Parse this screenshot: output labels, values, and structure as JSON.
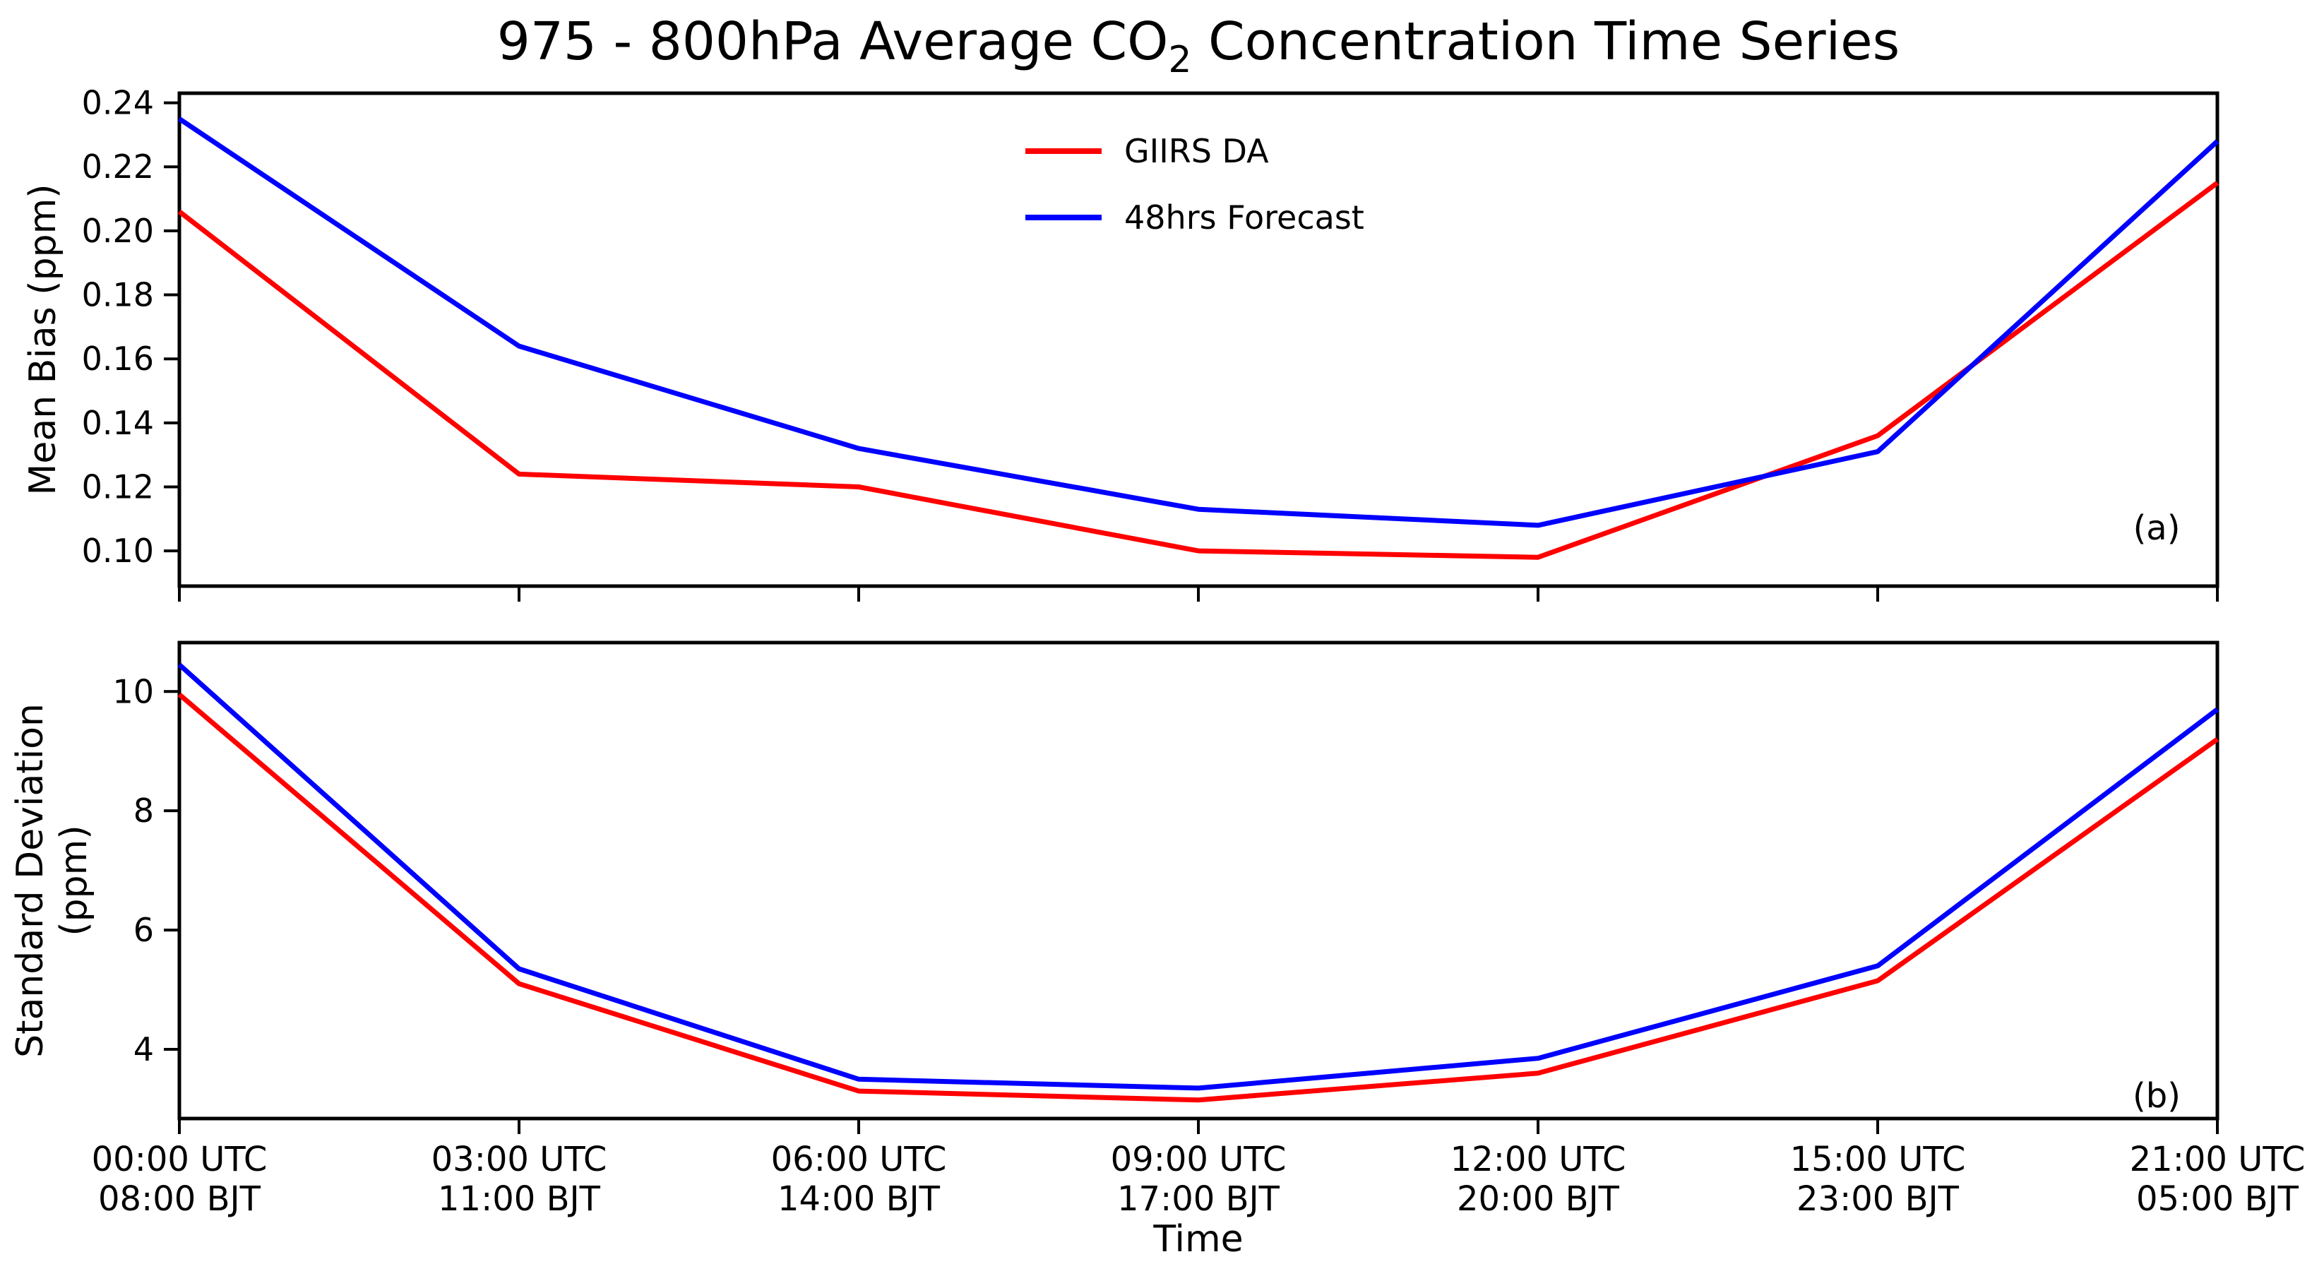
{
  "figure": {
    "title": {
      "prefix": "975 - 800hPa Average CO",
      "subscript": "2",
      "suffix": " Concentration Time Series"
    },
    "colors": {
      "giirs_da": "#ff0000",
      "forecast_48hrs": "#0000ff",
      "axis": "#000000"
    }
  },
  "legend": {
    "entries": [
      {
        "label": "GIIRS DA",
        "color": "#ff0000"
      },
      {
        "label": "48hrs Forecast",
        "color": "#0000ff"
      }
    ],
    "position": "upper center"
  },
  "x_axis": {
    "label": "Time",
    "tick_labels_utc": [
      "00:00 UTC",
      "03:00 UTC",
      "06:00 UTC",
      "09:00 UTC",
      "12:00 UTC",
      "15:00 UTC",
      "21:00 UTC"
    ],
    "tick_labels_bjt": [
      "08:00 BJT",
      "11:00 BJT",
      "14:00 BJT",
      "17:00 BJT",
      "20:00 BJT",
      "23:00 BJT",
      "05:00 BJT"
    ]
  },
  "chart_data": [
    {
      "type": "line",
      "panel": "a",
      "panel_label": "(a)",
      "title": "975 - 800hPa Average CO2 Concentration Time Series",
      "ylabel_lines": [
        "Mean Bias (ppm)"
      ],
      "xlabel": "Time",
      "categories": [
        "00:00 UTC",
        "03:00 UTC",
        "06:00 UTC",
        "09:00 UTC",
        "12:00 UTC",
        "15:00 UTC",
        "21:00 UTC"
      ],
      "categories_bjt": [
        "08:00 BJT",
        "11:00 BJT",
        "14:00 BJT",
        "17:00 BJT",
        "20:00 BJT",
        "23:00 BJT",
        "05:00 BJT"
      ],
      "ylim": [
        0.089,
        0.243
      ],
      "ytick_values": [
        0.1,
        0.12,
        0.14,
        0.16,
        0.18,
        0.2,
        0.22,
        0.24
      ],
      "ytick_labels": [
        "0.10",
        "0.12",
        "0.14",
        "0.16",
        "0.18",
        "0.20",
        "0.22",
        "0.24"
      ],
      "grid": false,
      "legend_position": "upper center",
      "series": [
        {
          "name": "GIIRS DA",
          "color": "#ff0000",
          "values": [
            0.206,
            0.124,
            0.12,
            0.1,
            0.098,
            0.136,
            0.215
          ]
        },
        {
          "name": "48hrs Forecast",
          "color": "#0000ff",
          "values": [
            0.235,
            0.164,
            0.132,
            0.113,
            0.108,
            0.131,
            0.228
          ]
        }
      ]
    },
    {
      "type": "line",
      "panel": "b",
      "panel_label": "(b)",
      "ylabel_lines": [
        "Standard Deviation",
        "(ppm)"
      ],
      "xlabel": "Time",
      "categories": [
        "00:00 UTC",
        "03:00 UTC",
        "06:00 UTC",
        "09:00 UTC",
        "12:00 UTC",
        "15:00 UTC",
        "21:00 UTC"
      ],
      "categories_bjt": [
        "08:00 BJT",
        "11:00 BJT",
        "14:00 BJT",
        "17:00 BJT",
        "20:00 BJT",
        "23:00 BJT",
        "05:00 BJT"
      ],
      "ylim": [
        2.84,
        10.82
      ],
      "ytick_values": [
        4,
        6,
        8,
        10
      ],
      "ytick_labels": [
        "4",
        "6",
        "8",
        "10"
      ],
      "grid": false,
      "series": [
        {
          "name": "GIIRS DA",
          "color": "#ff0000",
          "values": [
            9.95,
            5.1,
            3.3,
            3.15,
            3.6,
            5.15,
            9.2
          ]
        },
        {
          "name": "48hrs Forecast",
          "color": "#0000ff",
          "values": [
            10.45,
            5.35,
            3.5,
            3.35,
            3.85,
            5.4,
            9.7
          ]
        }
      ]
    }
  ]
}
